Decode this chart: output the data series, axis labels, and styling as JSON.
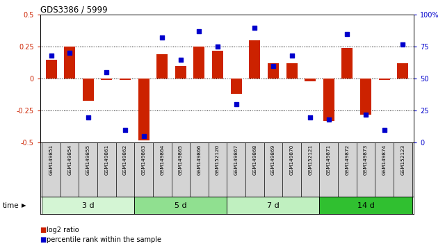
{
  "title": "GDS3386 / 5999",
  "samples": [
    "GSM149851",
    "GSM149854",
    "GSM149855",
    "GSM149861",
    "GSM149862",
    "GSM149863",
    "GSM149864",
    "GSM149865",
    "GSM149866",
    "GSM152120",
    "GSM149867",
    "GSM149868",
    "GSM149869",
    "GSM149870",
    "GSM152121",
    "GSM149871",
    "GSM149872",
    "GSM149873",
    "GSM149874",
    "GSM152123"
  ],
  "log2_ratio": [
    0.15,
    0.25,
    -0.17,
    -0.01,
    -0.01,
    -0.48,
    0.19,
    0.1,
    0.25,
    0.22,
    -0.12,
    0.3,
    0.12,
    0.12,
    -0.02,
    -0.33,
    0.24,
    -0.28,
    -0.01,
    0.12
  ],
  "percentile_rank": [
    68,
    70,
    20,
    55,
    10,
    5,
    82,
    65,
    87,
    75,
    30,
    90,
    60,
    68,
    20,
    18,
    85,
    22,
    10,
    77
  ],
  "groups": [
    {
      "label": "3 d",
      "start": 0,
      "end": 5,
      "color": "#d4f5d4"
    },
    {
      "label": "5 d",
      "start": 5,
      "end": 10,
      "color": "#90e090"
    },
    {
      "label": "7 d",
      "start": 10,
      "end": 15,
      "color": "#c0f0c0"
    },
    {
      "label": "14 d",
      "start": 15,
      "end": 20,
      "color": "#30c030"
    }
  ],
  "bar_color": "#cc2200",
  "dot_color": "#0000cc",
  "ylim_left": [
    -0.5,
    0.5
  ],
  "ylim_right": [
    0,
    100
  ],
  "yticks_left": [
    -0.5,
    -0.25,
    0,
    0.25,
    0.5
  ],
  "yticks_right": [
    0,
    25,
    50,
    75,
    100
  ],
  "dotted_lines": [
    -0.25,
    0,
    0.25
  ],
  "legend_log2": "log2 ratio",
  "legend_pct": "percentile rank within the sample",
  "time_label": "time"
}
